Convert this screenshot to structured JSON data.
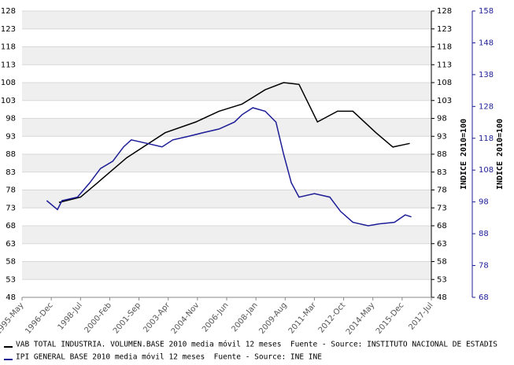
{
  "chart_data": {
    "type": "line",
    "y_label": "INDICE 2010=100",
    "y2_label": "INDICE 2010=100",
    "xlim": [
      "1995-05",
      "2017-07"
    ],
    "xticks": [
      {
        "value": "1995-05",
        "label": "1995-May"
      },
      {
        "value": "1996-12",
        "label": "1996-Dec"
      },
      {
        "value": "1998-07",
        "label": "1998-Jul"
      },
      {
        "value": "2000-02",
        "label": "2000-Feb"
      },
      {
        "value": "2001-09",
        "label": "2001-Sep"
      },
      {
        "value": "2003-04",
        "label": "2003-Apr"
      },
      {
        "value": "2004-11",
        "label": "2004-Nov"
      },
      {
        "value": "2006-06",
        "label": "2006-Jun"
      },
      {
        "value": "2008-01",
        "label": "2008-Jan"
      },
      {
        "value": "2009-08",
        "label": "2009-Aug"
      },
      {
        "value": "2011-03",
        "label": "2011-Mar"
      },
      {
        "value": "2012-10",
        "label": "2012-Oct"
      },
      {
        "value": "2014-05",
        "label": "2014-May"
      },
      {
        "value": "2015-12",
        "label": "2015-Dec"
      },
      {
        "value": "2017-07",
        "label": "2017-Jul"
      }
    ],
    "ylim": [
      48,
      128
    ],
    "yticks": [
      48,
      53,
      58,
      63,
      68,
      73,
      78,
      83,
      88,
      93,
      98,
      103,
      108,
      113,
      118,
      123,
      128
    ],
    "y2lim": [
      68,
      158
    ],
    "y2ticks": [
      68,
      78,
      88,
      98,
      108,
      118,
      128,
      138,
      148,
      158
    ],
    "grid": true,
    "series": [
      {
        "name": "VAB TOTAL INDUSTRIA. VOLUMEN.BASE 2010 media móvil 12 meses  Fuente - Source: INSTITUTO NACIONAL DE ESTADIS",
        "color": "#000000",
        "x": [
          "1997-05",
          "1998-07",
          "1999-06",
          "2001-01",
          "2003-02",
          "2004-10",
          "2006-01",
          "2007-04",
          "2008-07",
          "2009-07",
          "2010-05",
          "2011-05",
          "2012-06",
          "2013-04",
          "2014-07",
          "2015-06",
          "2016-05"
        ],
        "values": [
          74.5,
          76,
          80,
          87,
          94,
          97,
          100,
          102,
          106,
          108,
          107.5,
          97,
          100,
          100,
          94,
          90,
          91
        ]
      },
      {
        "name": "IPI GENERAL BASE 2010 media móvil 12 meses  Fuente - Source: INE INE",
        "color": "#1c1c96",
        "axis": "y2",
        "x": [
          "1996-09",
          "1997-04",
          "1997-07",
          "1998-05",
          "1999-01",
          "1999-08",
          "2000-04",
          "2000-11",
          "2001-04",
          "2002-02",
          "2002-12",
          "2003-07",
          "2004-05",
          "2005-03",
          "2006-01",
          "2006-11",
          "2007-04",
          "2007-11",
          "2008-07",
          "2009-02",
          "2009-07",
          "2009-12",
          "2010-05",
          "2011-03",
          "2012-01",
          "2012-08",
          "2013-04",
          "2014-02",
          "2014-09",
          "2015-07",
          "2016-02",
          "2016-06"
        ],
        "values": [
          98.4,
          95.6,
          98.4,
          99.5,
          104,
          108.5,
          110.8,
          115.3,
          117.5,
          116.4,
          115.3,
          117.5,
          118.6,
          119.8,
          120.9,
          123.1,
          125.4,
          127.6,
          126.5,
          123.1,
          113,
          104,
          99.5,
          100.6,
          99.5,
          95,
          91.6,
          90.5,
          91.1,
          91.6,
          93.9,
          93.3
        ]
      }
    ]
  }
}
